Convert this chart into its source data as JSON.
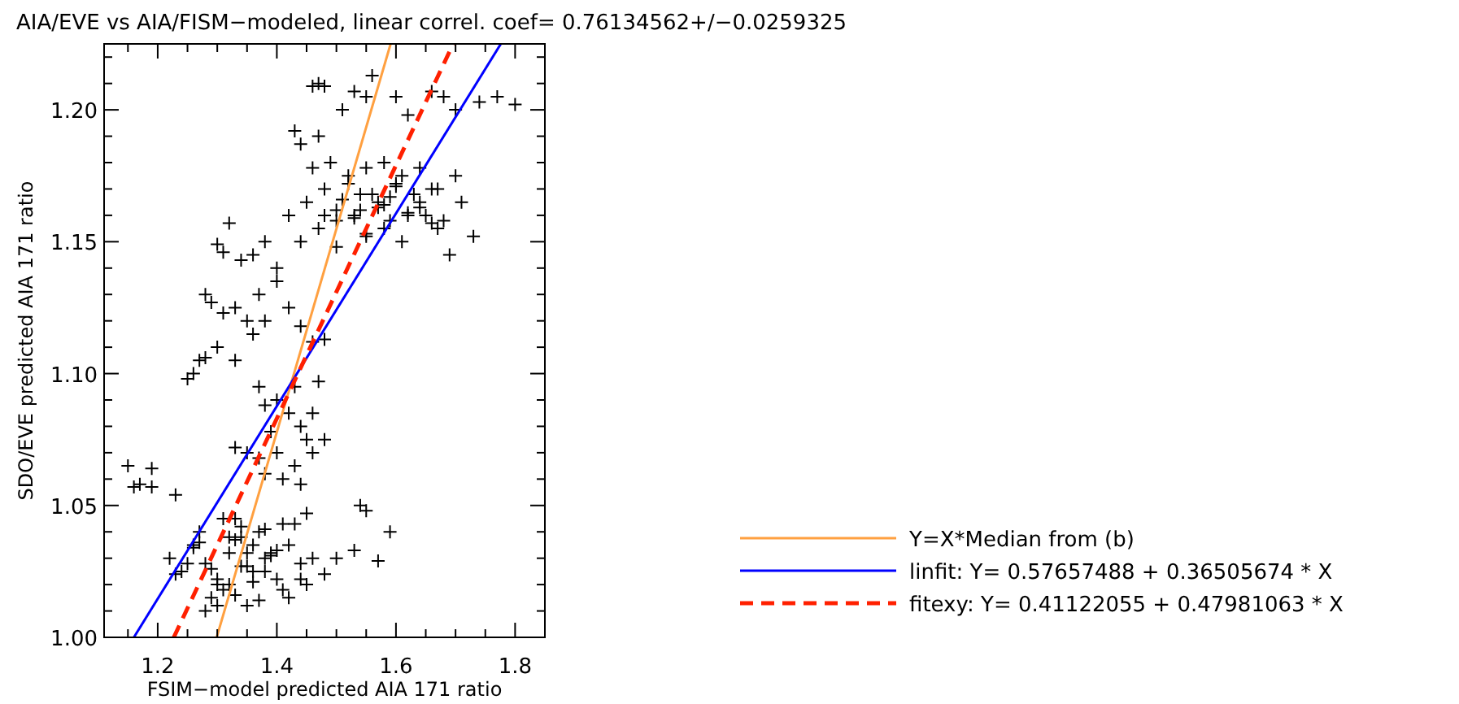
{
  "chart_data": {
    "type": "scatter",
    "title": "AIA/EVE vs AIA/FISM−modeled, linear correl. coef= 0.76134562+/−0.0259325",
    "xlabel": "FSIM−model predicted AIA 171 ratio",
    "ylabel": "SDO/EVE predicted AIA 171 ratio",
    "xlim": [
      1.11,
      1.85
    ],
    "ylim": [
      1.0,
      1.225
    ],
    "xticks": [
      {
        "value": 1.15,
        "label": null
      },
      {
        "value": 1.2,
        "label": "1.2"
      },
      {
        "value": 1.25,
        "label": null
      },
      {
        "value": 1.3,
        "label": null
      },
      {
        "value": 1.35,
        "label": null
      },
      {
        "value": 1.4,
        "label": "1.4"
      },
      {
        "value": 1.45,
        "label": null
      },
      {
        "value": 1.5,
        "label": null
      },
      {
        "value": 1.55,
        "label": null
      },
      {
        "value": 1.6,
        "label": "1.6"
      },
      {
        "value": 1.65,
        "label": null
      },
      {
        "value": 1.7,
        "label": null
      },
      {
        "value": 1.75,
        "label": null
      },
      {
        "value": 1.8,
        "label": "1.8"
      }
    ],
    "yticks": [
      {
        "value": 1.0,
        "label": "1.00"
      },
      {
        "value": 1.01,
        "label": null
      },
      {
        "value": 1.02,
        "label": null
      },
      {
        "value": 1.03,
        "label": null
      },
      {
        "value": 1.04,
        "label": null
      },
      {
        "value": 1.05,
        "label": "1.05"
      },
      {
        "value": 1.06,
        "label": null
      },
      {
        "value": 1.07,
        "label": null
      },
      {
        "value": 1.08,
        "label": null
      },
      {
        "value": 1.09,
        "label": null
      },
      {
        "value": 1.1,
        "label": "1.10"
      },
      {
        "value": 1.11,
        "label": null
      },
      {
        "value": 1.12,
        "label": null
      },
      {
        "value": 1.13,
        "label": null
      },
      {
        "value": 1.14,
        "label": null
      },
      {
        "value": 1.15,
        "label": "1.15"
      },
      {
        "value": 1.16,
        "label": null
      },
      {
        "value": 1.17,
        "label": null
      },
      {
        "value": 1.18,
        "label": null
      },
      {
        "value": 1.19,
        "label": null
      },
      {
        "value": 1.2,
        "label": "1.20"
      },
      {
        "value": 1.21,
        "label": null
      },
      {
        "value": 1.22,
        "label": null
      }
    ],
    "grid": false,
    "legend": "bottom right",
    "marker": "cross",
    "series": [
      {
        "color": "#000000",
        "x": [
          1.46,
          1.47,
          1.48,
          1.53,
          1.55,
          1.56,
          1.51,
          1.47,
          1.6,
          1.66,
          1.68,
          1.74,
          1.77,
          1.8,
          1.7,
          1.43,
          1.44,
          1.62,
          1.42,
          1.45,
          1.48,
          1.5,
          1.52,
          1.54,
          1.56,
          1.58,
          1.6,
          1.62,
          1.64,
          1.66,
          1.68,
          1.7,
          1.44,
          1.47,
          1.5,
          1.53,
          1.55,
          1.57,
          1.59,
          1.61,
          1.63,
          1.65,
          1.67,
          1.46,
          1.49,
          1.52,
          1.55,
          1.58,
          1.61,
          1.64,
          1.67,
          1.71,
          1.73,
          1.69,
          1.4,
          1.38,
          1.36,
          1.32,
          1.3,
          1.31,
          1.34,
          1.28,
          1.29,
          1.31,
          1.33,
          1.35,
          1.37,
          1.3,
          1.28,
          1.26,
          1.25,
          1.27,
          1.33,
          1.36,
          1.38,
          1.4,
          1.42,
          1.44,
          1.46,
          1.48,
          1.37,
          1.38,
          1.4,
          1.42,
          1.44,
          1.45,
          1.46,
          1.43,
          1.47,
          1.46,
          1.35,
          1.37,
          1.4,
          1.38,
          1.33,
          1.41,
          1.43,
          1.39,
          1.48,
          1.44,
          1.15,
          1.16,
          1.17,
          1.19,
          1.19,
          1.23,
          1.54,
          1.55,
          1.59,
          1.57,
          1.53,
          1.22,
          1.24,
          1.26,
          1.28,
          1.3,
          1.32,
          1.34,
          1.36,
          1.38,
          1.4,
          1.42,
          1.44,
          1.46,
          1.48,
          1.25,
          1.27,
          1.29,
          1.31,
          1.33,
          1.35,
          1.37,
          1.39,
          1.41,
          1.43,
          1.45,
          1.28,
          1.3,
          1.32,
          1.34,
          1.36,
          1.38,
          1.4,
          1.33,
          1.35,
          1.37,
          1.5,
          1.23,
          1.31,
          1.42,
          1.3,
          1.32,
          1.34,
          1.36,
          1.39,
          1.41,
          1.29,
          1.27,
          1.35,
          1.33,
          1.38,
          1.26,
          1.44,
          1.45,
          1.5,
          1.53,
          1.57,
          1.59,
          1.62,
          1.66,
          1.51,
          1.55,
          1.6,
          1.64,
          1.48,
          1.54,
          1.58
        ],
        "values": [
          1.209,
          1.21,
          1.209,
          1.207,
          1.205,
          1.213,
          1.2,
          1.19,
          1.205,
          1.207,
          1.205,
          1.203,
          1.205,
          1.202,
          1.2,
          1.192,
          1.187,
          1.198,
          1.16,
          1.165,
          1.17,
          1.158,
          1.175,
          1.162,
          1.168,
          1.155,
          1.172,
          1.16,
          1.165,
          1.17,
          1.158,
          1.175,
          1.15,
          1.155,
          1.148,
          1.16,
          1.152,
          1.165,
          1.158,
          1.15,
          1.168,
          1.16,
          1.155,
          1.178,
          1.18,
          1.172,
          1.178,
          1.18,
          1.175,
          1.178,
          1.17,
          1.165,
          1.152,
          1.145,
          1.14,
          1.15,
          1.145,
          1.157,
          1.149,
          1.146,
          1.143,
          1.13,
          1.127,
          1.123,
          1.125,
          1.12,
          1.13,
          1.11,
          1.106,
          1.1,
          1.098,
          1.105,
          1.105,
          1.115,
          1.12,
          1.135,
          1.125,
          1.118,
          1.112,
          1.113,
          1.095,
          1.088,
          1.09,
          1.085,
          1.08,
          1.075,
          1.07,
          1.095,
          1.097,
          1.085,
          1.07,
          1.068,
          1.07,
          1.062,
          1.072,
          1.06,
          1.065,
          1.078,
          1.075,
          1.058,
          1.065,
          1.057,
          1.058,
          1.064,
          1.057,
          1.054,
          1.05,
          1.048,
          1.04,
          1.029,
          1.033,
          1.03,
          1.025,
          1.035,
          1.028,
          1.02,
          1.032,
          1.038,
          1.025,
          1.03,
          1.022,
          1.035,
          1.028,
          1.03,
          1.024,
          1.028,
          1.04,
          1.015,
          1.018,
          1.045,
          1.012,
          1.04,
          1.032,
          1.018,
          1.043,
          1.02,
          1.01,
          1.022,
          1.02,
          1.042,
          1.035,
          1.025,
          1.033,
          1.037,
          1.027,
          1.014,
          1.03,
          1.024,
          1.045,
          1.015,
          1.012,
          1.038,
          1.027,
          1.021,
          1.031,
          1.043,
          1.026,
          1.036,
          1.032,
          1.016,
          1.041,
          1.034,
          1.022,
          1.047,
          1.162,
          1.159,
          1.163,
          1.167,
          1.161,
          1.157,
          1.166,
          1.153,
          1.171,
          1.163,
          1.16,
          1.168,
          1.164
        ]
      },
      {
        "type": "line",
        "name": "Y=X*Median from (b)",
        "color": "#ffa040",
        "marker": "none",
        "x": [
          1.299,
          1.591
        ],
        "values": [
          1.0,
          1.225
        ]
      },
      {
        "type": "line",
        "name": "linfit: Y= 0.57657488 + 0.36505674 * X",
        "color": "#0000ff",
        "marker": "none",
        "x": [
          1.16,
          1.776
        ],
        "values": [
          1.0,
          1.225
        ]
      },
      {
        "type": "line",
        "name": "fitexy: Y= 0.41122055 + 0.47981063 * X",
        "color": "#ff2000",
        "marker": "none",
        "line_style": "dashed",
        "x": [
          1.227,
          1.696
        ],
        "values": [
          1.0,
          1.225
        ]
      }
    ]
  }
}
